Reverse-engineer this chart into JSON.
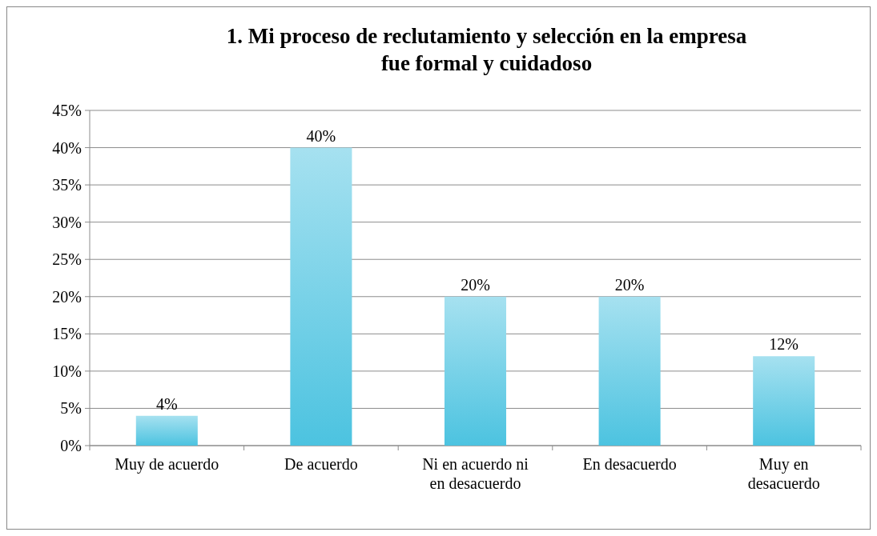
{
  "chart_data": {
    "type": "bar",
    "title": "1. Mi proceso de reclutamiento y selección en la empresa fue formal y cuidadoso",
    "categories": [
      "Muy de acuerdo",
      "De acuerdo",
      "Ni en acuerdo ni en desacuerdo",
      "En desacuerdo",
      "Muy en desacuerdo"
    ],
    "values": [
      4,
      40,
      20,
      20,
      12
    ],
    "value_labels": [
      "4%",
      "40%",
      "20%",
      "20%",
      "12%"
    ],
    "color": "#4cc3e0",
    "ylim": [
      0,
      45
    ],
    "yticks": [
      {
        "value": 0,
        "label": "0%"
      },
      {
        "value": 5,
        "label": "5%"
      },
      {
        "value": 10,
        "label": "10%"
      },
      {
        "value": 15,
        "label": "15%"
      },
      {
        "value": 20,
        "label": "20%"
      },
      {
        "value": 25,
        "label": "25%"
      },
      {
        "value": 30,
        "label": "30%"
      },
      {
        "value": 35,
        "label": "35%"
      },
      {
        "value": 40,
        "label": "40%"
      },
      {
        "value": 45,
        "label": "45%"
      }
    ],
    "grid": "y"
  }
}
